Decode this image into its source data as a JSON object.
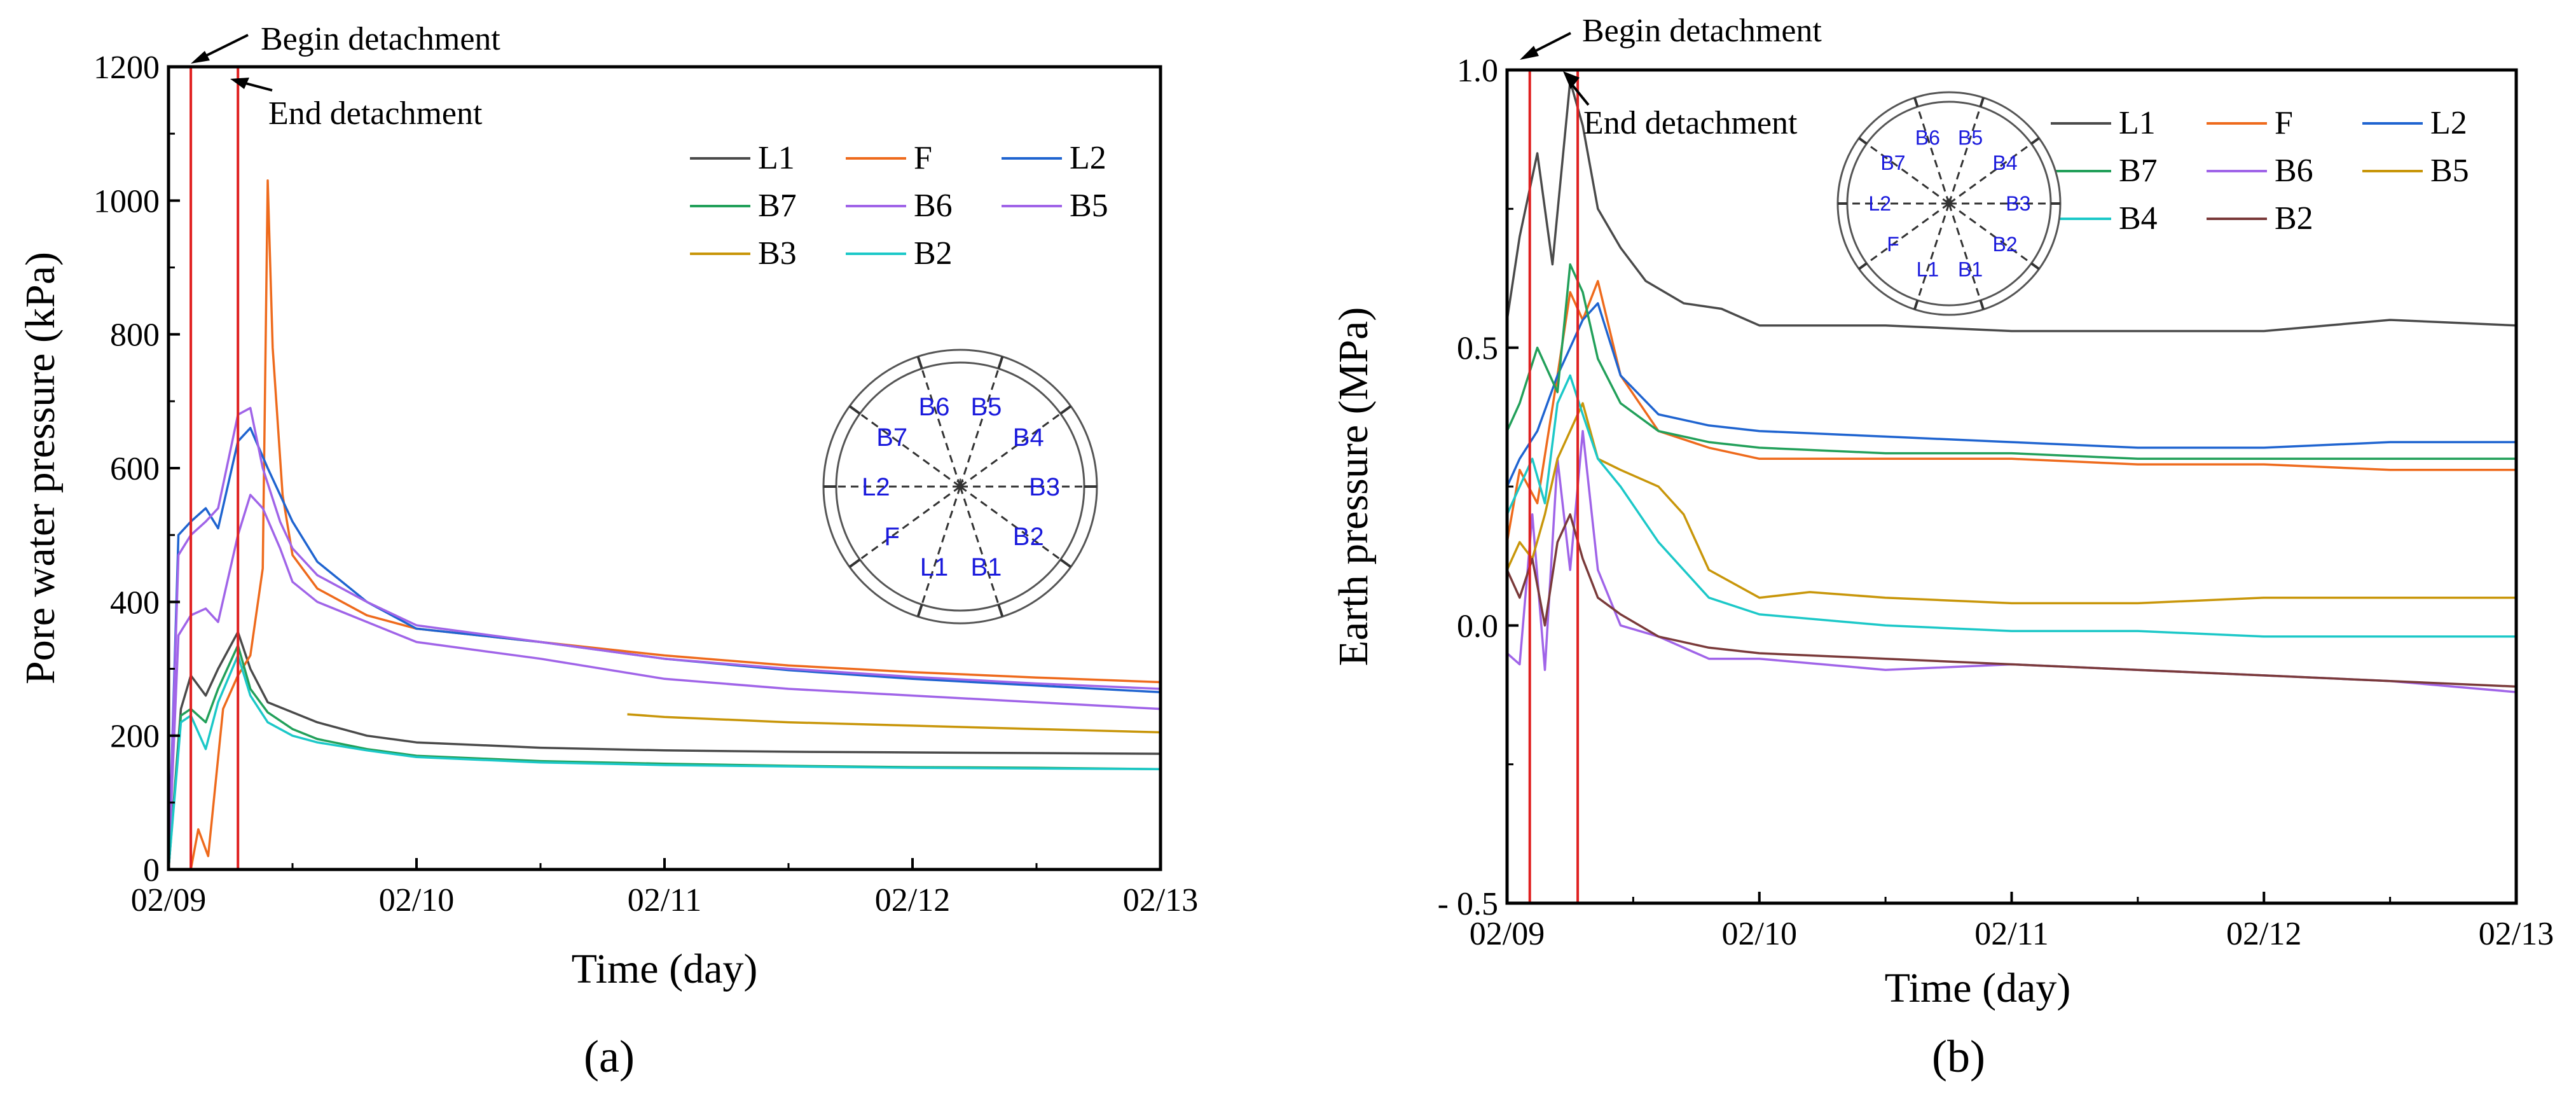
{
  "colors": {
    "L1": "#4a4a4a",
    "F": "#ee6a1c",
    "L2": "#1f64d0",
    "B7": "#22a05a",
    "B6": "#a064e8",
    "B5_a": "#a064e8",
    "B5_b": "#c8960a",
    "B4": "#1cc8c8",
    "B3": "#c8960a",
    "B2": "#7a3a3a",
    "marker": "#e02020",
    "ring_label": "#1a1adc"
  },
  "chart_data": [
    {
      "panel_label": "(a)",
      "type": "line",
      "title": "",
      "xlabel": "Time (day)",
      "ylabel": "Pore water pressure (kPa)",
      "xlim": [
        0,
        4
      ],
      "ylim": [
        0,
        1200
      ],
      "xticks": [
        0,
        1,
        2,
        3,
        4
      ],
      "xtick_labels": [
        "02/09",
        "02/10",
        "02/11",
        "02/12",
        "02/13"
      ],
      "yticks": [
        0,
        200,
        400,
        600,
        800,
        1000,
        1200
      ],
      "ytick_labels": [
        "0",
        "200",
        "400",
        "600",
        "800",
        "1000",
        "1200"
      ],
      "markers": [
        {
          "x": 0.09,
          "label": "Begin detachment"
        },
        {
          "x": 0.28,
          "label": "End detachment"
        }
      ],
      "legend": {
        "entries": [
          "L1",
          "F",
          "L2",
          "B7",
          "B6",
          "B5",
          "B3",
          "B2"
        ],
        "position": "top-right"
      },
      "inset": {
        "labels": [
          "B6",
          "B5",
          "B4",
          "B3",
          "B2",
          "B1",
          "L1",
          "F",
          "L2",
          "B7"
        ]
      },
      "series": [
        {
          "name": "L1",
          "color": "#4a4a4a",
          "x": [
            0,
            0.05,
            0.09,
            0.15,
            0.2,
            0.28,
            0.33,
            0.4,
            0.5,
            0.6,
            0.8,
            1.0,
            1.5,
            2.0,
            2.5,
            3.0,
            3.5,
            4.0
          ],
          "y": [
            0,
            240,
            290,
            260,
            300,
            355,
            300,
            250,
            235,
            220,
            200,
            190,
            182,
            178,
            176,
            175,
            174,
            173
          ]
        },
        {
          "name": "F",
          "color": "#ee6a1c",
          "x": [
            0,
            0.05,
            0.09,
            0.12,
            0.16,
            0.22,
            0.28,
            0.33,
            0.38,
            0.4,
            0.42,
            0.46,
            0.5,
            0.6,
            0.8,
            1.0,
            1.5,
            2.0,
            2.5,
            3.0,
            3.5,
            4.0
          ],
          "y": [
            0,
            0,
            0,
            60,
            20,
            240,
            290,
            320,
            450,
            1030,
            780,
            560,
            470,
            420,
            380,
            360,
            340,
            320,
            305,
            295,
            287,
            280
          ]
        },
        {
          "name": "L2",
          "color": "#1f64d0",
          "x": [
            0,
            0.04,
            0.09,
            0.15,
            0.2,
            0.28,
            0.33,
            0.4,
            0.5,
            0.6,
            0.8,
            1.0,
            1.5,
            2.0,
            2.5,
            3.0,
            3.5,
            4.0
          ],
          "y": [
            0,
            500,
            520,
            540,
            510,
            640,
            660,
            600,
            520,
            460,
            400,
            360,
            340,
            315,
            298,
            285,
            275,
            265
          ]
        },
        {
          "name": "B7",
          "color": "#22a05a",
          "x": [
            0,
            0.05,
            0.09,
            0.15,
            0.2,
            0.28,
            0.33,
            0.4,
            0.5,
            0.6,
            0.8,
            1.0,
            1.5,
            2.0,
            2.5,
            3.0,
            3.5,
            4.0
          ],
          "y": [
            0,
            230,
            240,
            220,
            270,
            335,
            270,
            235,
            210,
            195,
            180,
            170,
            162,
            158,
            155,
            153,
            152,
            150
          ]
        },
        {
          "name": "B6",
          "color": "#a064e8",
          "x": [
            0,
            0.04,
            0.09,
            0.15,
            0.2,
            0.28,
            0.33,
            0.38,
            0.45,
            0.5,
            0.6,
            0.8,
            1.0,
            1.5,
            2.0,
            2.5,
            3.0,
            3.5,
            4.0
          ],
          "y": [
            0,
            350,
            380,
            390,
            370,
            500,
            560,
            540,
            480,
            430,
            400,
            370,
            340,
            315,
            285,
            270,
            260,
            250,
            240
          ]
        },
        {
          "name": "B5",
          "color": "#a064e8",
          "x": [
            0,
            0.04,
            0.09,
            0.15,
            0.2,
            0.28,
            0.33,
            0.38,
            0.45,
            0.5,
            0.6,
            0.8,
            1.0,
            1.5,
            2.0,
            2.5,
            3.0,
            3.5,
            4.0
          ],
          "y": [
            0,
            470,
            500,
            520,
            540,
            680,
            690,
            600,
            520,
            480,
            440,
            400,
            365,
            340,
            315,
            300,
            288,
            278,
            270
          ]
        },
        {
          "name": "B3",
          "color": "#c8960a",
          "x": [
            1.85,
            2.0,
            2.5,
            3.0,
            3.5,
            4.0
          ],
          "y": [
            232,
            228,
            220,
            215,
            210,
            205
          ]
        },
        {
          "name": "B2",
          "color": "#1cc8c8",
          "x": [
            0,
            0.05,
            0.09,
            0.15,
            0.2,
            0.28,
            0.33,
            0.4,
            0.5,
            0.6,
            0.8,
            1.0,
            1.5,
            2.0,
            2.5,
            3.0,
            3.5,
            4.0
          ],
          "y": [
            0,
            220,
            230,
            180,
            250,
            320,
            260,
            220,
            200,
            190,
            178,
            168,
            160,
            156,
            154,
            152,
            151,
            150
          ]
        }
      ]
    },
    {
      "panel_label": "(b)",
      "type": "line",
      "title": "",
      "xlabel": "Time (day)",
      "ylabel": "Earth pressure (MPa)",
      "xlim": [
        0,
        4
      ],
      "ylim": [
        -0.5,
        1.0
      ],
      "xticks": [
        0,
        1,
        2,
        3,
        4
      ],
      "xtick_labels": [
        "02/09",
        "02/10",
        "02/11",
        "02/12",
        "02/13"
      ],
      "yticks": [
        -0.5,
        0.0,
        0.5,
        1.0
      ],
      "ytick_labels": [
        "- 0.5",
        "0.0",
        "0.5",
        "1.0"
      ],
      "markers": [
        {
          "x": 0.09,
          "label": "Begin detachment"
        },
        {
          "x": 0.28,
          "label": "End detachment"
        }
      ],
      "legend": {
        "entries": [
          "L1",
          "F",
          "L2",
          "B7",
          "B6",
          "B5",
          "B4",
          "B2"
        ],
        "position": "top-right"
      },
      "inset": {
        "labels": [
          "B6",
          "B5",
          "B4",
          "B3",
          "B2",
          "B1",
          "L1",
          "F",
          "L2",
          "B7"
        ]
      },
      "series": [
        {
          "name": "L1",
          "color": "#4a4a4a",
          "x": [
            0,
            0.05,
            0.12,
            0.18,
            0.25,
            0.3,
            0.36,
            0.45,
            0.55,
            0.7,
            0.85,
            1.0,
            1.5,
            2.0,
            2.5,
            3.0,
            3.5,
            4.0
          ],
          "y": [
            0.55,
            0.7,
            0.85,
            0.65,
            0.98,
            0.9,
            0.75,
            0.68,
            0.62,
            0.58,
            0.57,
            0.54,
            0.54,
            0.53,
            0.53,
            0.53,
            0.55,
            0.54
          ]
        },
        {
          "name": "F",
          "color": "#ee6a1c",
          "x": [
            0,
            0.05,
            0.12,
            0.2,
            0.25,
            0.3,
            0.36,
            0.45,
            0.6,
            0.8,
            1.0,
            1.5,
            2.0,
            2.5,
            3.0,
            3.5,
            4.0
          ],
          "y": [
            0.15,
            0.28,
            0.22,
            0.45,
            0.6,
            0.55,
            0.62,
            0.45,
            0.35,
            0.32,
            0.3,
            0.3,
            0.3,
            0.29,
            0.29,
            0.28,
            0.28
          ]
        },
        {
          "name": "L2",
          "color": "#1f64d0",
          "x": [
            0,
            0.05,
            0.12,
            0.2,
            0.25,
            0.3,
            0.36,
            0.45,
            0.6,
            0.8,
            1.0,
            1.5,
            2.0,
            2.5,
            3.0,
            3.5,
            4.0
          ],
          "y": [
            0.25,
            0.3,
            0.35,
            0.45,
            0.5,
            0.55,
            0.58,
            0.45,
            0.38,
            0.36,
            0.35,
            0.34,
            0.33,
            0.32,
            0.32,
            0.33,
            0.33
          ]
        },
        {
          "name": "B7",
          "color": "#22a05a",
          "x": [
            0,
            0.05,
            0.12,
            0.2,
            0.25,
            0.3,
            0.36,
            0.45,
            0.6,
            0.8,
            1.0,
            1.5,
            2.0,
            2.5,
            3.0,
            3.5,
            4.0
          ],
          "y": [
            0.35,
            0.4,
            0.5,
            0.42,
            0.65,
            0.6,
            0.48,
            0.4,
            0.35,
            0.33,
            0.32,
            0.31,
            0.31,
            0.3,
            0.3,
            0.3,
            0.3
          ]
        },
        {
          "name": "B6",
          "color": "#a064e8",
          "x": [
            0,
            0.05,
            0.1,
            0.15,
            0.2,
            0.25,
            0.3,
            0.36,
            0.45,
            0.6,
            0.8,
            1.0,
            1.5,
            2.0,
            2.5,
            3.0,
            3.5,
            4.0
          ],
          "y": [
            -0.05,
            -0.07,
            0.2,
            -0.08,
            0.3,
            0.1,
            0.35,
            0.1,
            0.0,
            -0.02,
            -0.06,
            -0.06,
            -0.08,
            -0.07,
            -0.08,
            -0.09,
            -0.1,
            -0.12
          ]
        },
        {
          "name": "B5",
          "color": "#c8960a",
          "x": [
            0,
            0.05,
            0.1,
            0.15,
            0.2,
            0.25,
            0.3,
            0.36,
            0.45,
            0.6,
            0.7,
            0.8,
            1.0,
            1.2,
            1.5,
            2.0,
            2.5,
            3.0,
            3.5,
            4.0
          ],
          "y": [
            0.1,
            0.15,
            0.12,
            0.2,
            0.3,
            0.35,
            0.4,
            0.3,
            0.28,
            0.25,
            0.2,
            0.1,
            0.05,
            0.06,
            0.05,
            0.04,
            0.04,
            0.05,
            0.05,
            0.05
          ]
        },
        {
          "name": "B4",
          "color": "#1cc8c8",
          "x": [
            0,
            0.05,
            0.1,
            0.15,
            0.2,
            0.25,
            0.3,
            0.36,
            0.45,
            0.6,
            0.8,
            1.0,
            1.5,
            2.0,
            2.5,
            3.0,
            3.5,
            4.0
          ],
          "y": [
            0.2,
            0.25,
            0.3,
            0.22,
            0.4,
            0.45,
            0.38,
            0.3,
            0.25,
            0.15,
            0.05,
            0.02,
            0.0,
            -0.01,
            -0.01,
            -0.02,
            -0.02,
            -0.02
          ]
        },
        {
          "name": "B2",
          "color": "#7a3a3a",
          "x": [
            0,
            0.05,
            0.1,
            0.15,
            0.2,
            0.25,
            0.3,
            0.36,
            0.45,
            0.6,
            0.8,
            1.0,
            1.5,
            2.0,
            2.5,
            3.0,
            3.5,
            4.0
          ],
          "y": [
            0.1,
            0.05,
            0.12,
            0.0,
            0.15,
            0.2,
            0.12,
            0.05,
            0.02,
            -0.02,
            -0.04,
            -0.05,
            -0.06,
            -0.07,
            -0.08,
            -0.09,
            -0.1,
            -0.11
          ]
        }
      ]
    }
  ]
}
